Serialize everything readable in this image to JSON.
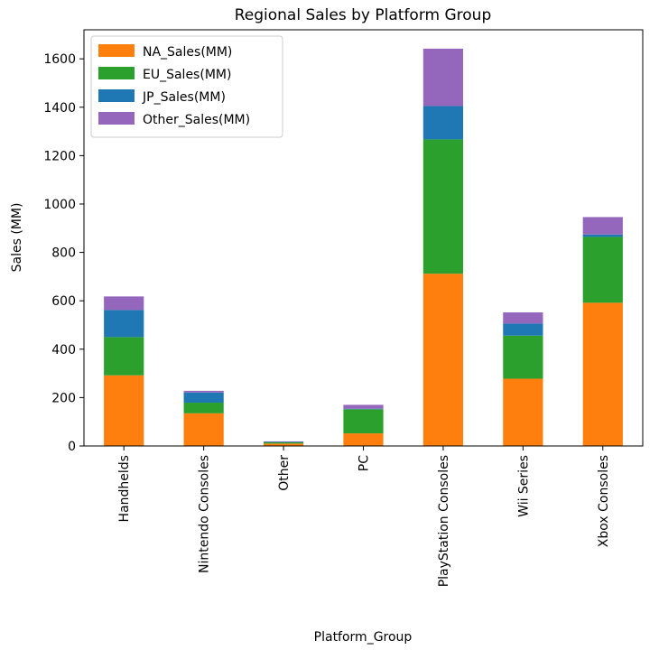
{
  "chart_data": {
    "type": "bar",
    "stacked": true,
    "title": "Regional Sales by Platform Group",
    "xlabel": "Platform_Group",
    "ylabel": "Sales (MM)",
    "categories": [
      "Handhelds",
      "Nintendo Consoles",
      "Other",
      "PC",
      "PlayStation Consoles",
      "Wii Series",
      "Xbox Consoles"
    ],
    "ylim": [
      0,
      1720
    ],
    "yticks": [
      0,
      200,
      400,
      600,
      800,
      1000,
      1200,
      1400,
      1600
    ],
    "legend_position": "top-left",
    "grid": false,
    "series": [
      {
        "name": "NA_Sales(MM)",
        "color": "#ff7f0e",
        "values": [
          292,
          135,
          10,
          52,
          712,
          278,
          592
        ]
      },
      {
        "name": "EU_Sales(MM)",
        "color": "#2ca02c",
        "values": [
          158,
          44,
          5,
          100,
          555,
          178,
          272
        ]
      },
      {
        "name": "JP_Sales(MM)",
        "color": "#1f77b4",
        "values": [
          112,
          42,
          2,
          2,
          138,
          50,
          10
        ]
      },
      {
        "name": "Other_Sales(MM)",
        "color": "#9467bd",
        "values": [
          56,
          7,
          2,
          16,
          237,
          46,
          72
        ]
      }
    ]
  }
}
